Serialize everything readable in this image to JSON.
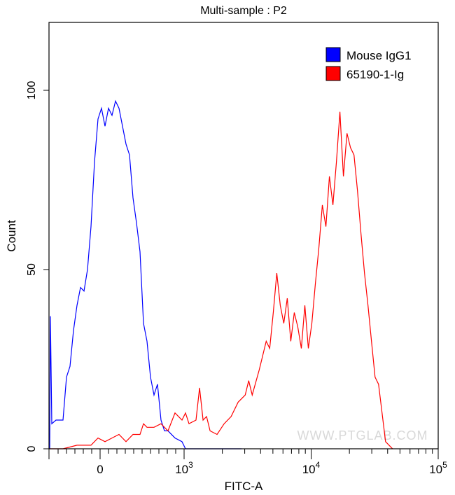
{
  "chart_data": {
    "type": "line",
    "title": "Multi-sample : P2",
    "xlabel": "FITC-A",
    "ylabel": "Count",
    "x_scale": "biexponential",
    "xlim": [
      -608,
      100000
    ],
    "ylim": [
      0,
      119
    ],
    "x_ticks": [
      {
        "value": 0,
        "label": "0"
      },
      {
        "value": 1000,
        "base": "10",
        "exp": "3"
      },
      {
        "value": 10000,
        "base": "10",
        "exp": "4"
      },
      {
        "value": 100000,
        "base": "10",
        "exp": "5"
      }
    ],
    "y_ticks": [
      0,
      50,
      100
    ],
    "grid": false,
    "legend_position": "top-right",
    "watermark": "WWW.PTGLAB.COM",
    "series": [
      {
        "name": "Mouse IgG1",
        "color": "#0000FF",
        "x": [
          -600,
          -592,
          -575,
          -525,
          -442,
          -400,
          -358,
          -317,
          -275,
          -233,
          -192,
          -150,
          -108,
          -67,
          -25,
          17,
          58,
          100,
          142,
          183,
          225,
          267,
          308,
          350,
          392,
          433,
          475,
          517,
          558,
          600,
          642,
          683,
          725,
          767,
          808,
          892,
          975,
          1026,
          1410,
          2838
        ],
        "y": [
          0,
          37,
          7,
          8,
          8,
          20,
          23,
          33,
          40,
          45,
          44,
          50,
          62,
          80,
          92,
          95,
          90,
          95,
          93,
          97,
          95,
          90,
          85,
          82,
          70,
          63,
          55,
          35,
          30,
          20,
          15,
          18,
          8,
          5,
          5,
          3,
          2,
          0,
          0,
          0
        ]
      },
      {
        "name": "65190-1-Ig",
        "color": "#FF0000",
        "x": [
          -608,
          -442,
          -275,
          -108,
          -25,
          58,
          142,
          225,
          308,
          392,
          475,
          517,
          558,
          642,
          725,
          808,
          892,
          975,
          1026,
          1093,
          1241,
          1323,
          1410,
          1502,
          1601,
          1818,
          2065,
          2346,
          2664,
          3025,
          3224,
          3435,
          3902,
          4431,
          4721,
          5031,
          5361,
          5713,
          6088,
          6489,
          6916,
          7369,
          7852,
          8369,
          8919,
          9504,
          10127,
          10792,
          11503,
          12255,
          13062,
          13918,
          14838,
          15810,
          16848,
          17953,
          19139,
          20392,
          21733,
          23158,
          24690,
          26303,
          28029,
          29867,
          31842,
          33927,
          36141,
          38512,
          41049,
          43742
        ],
        "y": [
          0,
          0,
          1,
          1,
          3,
          2,
          3,
          4,
          2,
          4,
          4,
          7,
          6,
          6,
          7,
          5,
          10,
          8,
          10,
          7,
          8,
          17,
          8,
          9,
          5,
          4,
          7,
          9,
          13,
          15,
          19,
          15,
          22,
          30,
          28,
          38,
          49,
          40,
          35,
          42,
          30,
          38,
          34,
          28,
          40,
          28,
          35,
          46,
          56,
          68,
          62,
          76,
          68,
          80,
          94,
          76,
          88,
          84,
          82,
          72,
          60,
          49,
          40,
          30,
          20,
          18,
          10,
          2,
          1,
          0
        ]
      }
    ]
  }
}
